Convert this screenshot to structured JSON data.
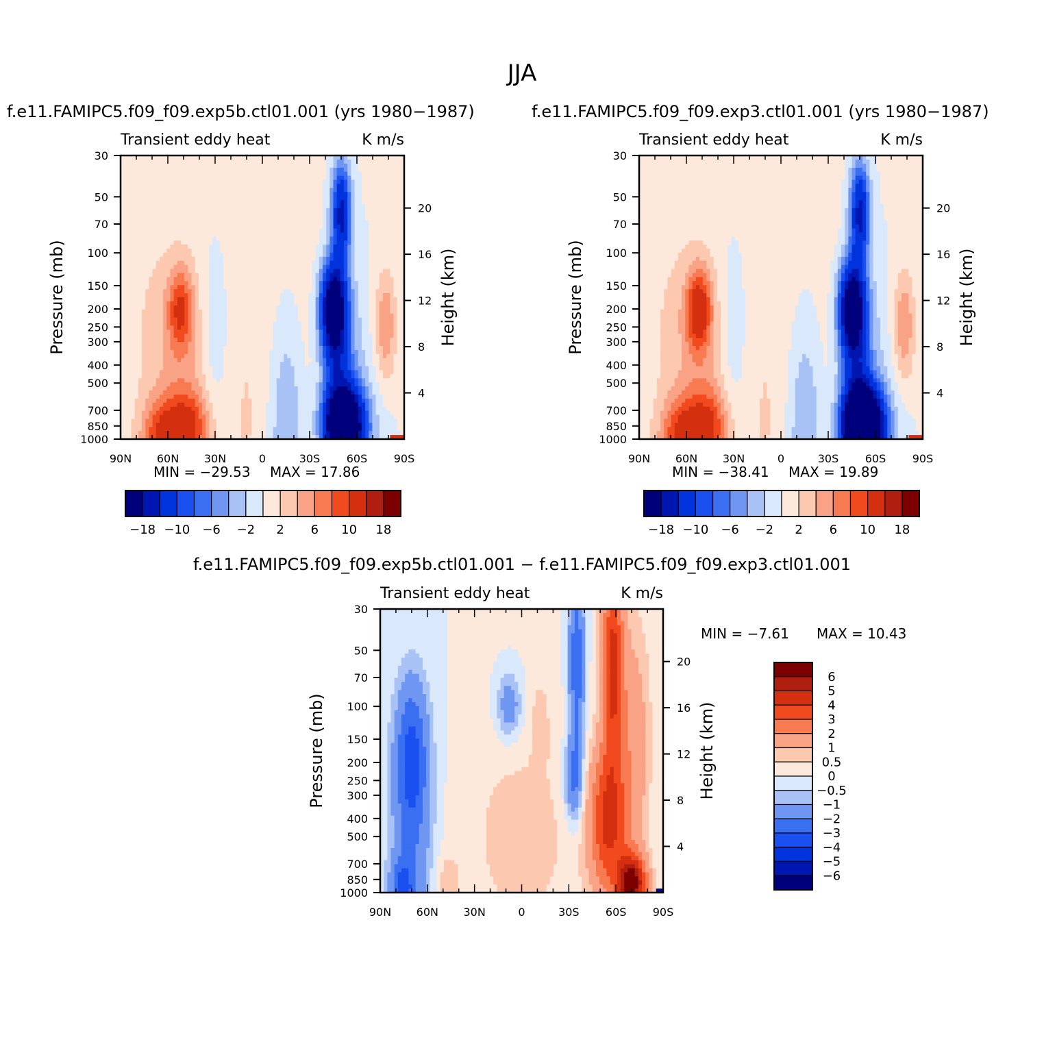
{
  "figure": {
    "title": "JJA"
  },
  "axes": {
    "pressure_label": "Pressure (mb)",
    "height_label": "Height (km)",
    "pressure_ticks": [
      "30",
      "50",
      "70",
      "100",
      "150",
      "200",
      "250",
      "300",
      "400",
      "500",
      "700",
      "850",
      "1000"
    ],
    "height_ticks": [
      "20",
      "16",
      "12",
      "8",
      "4"
    ],
    "lat_ticks": [
      "90N",
      "60N",
      "30N",
      "0",
      "30S",
      "60S",
      "90S"
    ]
  },
  "colors": {
    "palette": [
      "#00007d",
      "#0016b0",
      "#0033db",
      "#1a4ff0",
      "#3b6ff2",
      "#6f97f2",
      "#a9c2f5",
      "#d9e8fb",
      "#fde9dc",
      "#fcc8b0",
      "#f9a285",
      "#f87a50",
      "#f24a1f",
      "#d43010",
      "#b01e10",
      "#7c0000"
    ]
  },
  "chart_data": [
    {
      "type": "heatmap",
      "subtitle": "f.e11.FAMIPC5.f09_f09.exp5b.ctl01.001 (yrs 1980-1987)",
      "left_label": "Transient eddy heat",
      "right_label": "K m/s",
      "min_label": "MIN = -29.53",
      "max_label": "MAX = 17.86",
      "min": -29.53,
      "max": 17.86,
      "colorbar_ticks": [
        "-18",
        "-10",
        "-6",
        "-2",
        "2",
        "6",
        "10",
        "18"
      ],
      "levels": [
        -18,
        -14,
        -10,
        -8,
        -6,
        -4,
        -2,
        0,
        2,
        4,
        6,
        8,
        10,
        14,
        18
      ],
      "x_range": [
        90,
        -90
      ],
      "y_range_mb": [
        1000,
        30
      ]
    },
    {
      "type": "heatmap",
      "subtitle": "f.e11.FAMIPC5.f09_f09.exp3.ctl01.001 (yrs 1980-1987)",
      "left_label": "Transient eddy heat",
      "right_label": "K m/s",
      "min_label": "MIN = -38.41",
      "max_label": "MAX = 19.89",
      "min": -38.41,
      "max": 19.89,
      "colorbar_ticks": [
        "-18",
        "-10",
        "-6",
        "-2",
        "2",
        "6",
        "10",
        "18"
      ],
      "levels": [
        -18,
        -14,
        -10,
        -8,
        -6,
        -4,
        -2,
        0,
        2,
        4,
        6,
        8,
        10,
        14,
        18
      ],
      "x_range": [
        90,
        -90
      ],
      "y_range_mb": [
        1000,
        30
      ]
    },
    {
      "type": "heatmap",
      "subtitle": "f.e11.FAMIPC5.f09_f09.exp5b.ctl01.001 - f.e11.FAMIPC5.f09_f09.exp3.ctl01.001",
      "left_label": "Transient eddy heat",
      "right_label": "K m/s",
      "min_label": "MIN = -7.61",
      "max_label": "MAX = 10.43",
      "min": -7.61,
      "max": 10.43,
      "colorbar_ticks": [
        "6",
        "5",
        "4",
        "3",
        "2",
        "1",
        "0.5",
        "0",
        "-0.5",
        "-1",
        "-2",
        "-3",
        "-4",
        "-5",
        "-6"
      ],
      "levels": [
        -6,
        -5,
        -4,
        -3,
        -2,
        -1,
        -0.5,
        0,
        0.5,
        1,
        2,
        3,
        4,
        5,
        6
      ],
      "x_range": [
        90,
        -90
      ],
      "y_range_mb": [
        1000,
        30
      ]
    }
  ]
}
